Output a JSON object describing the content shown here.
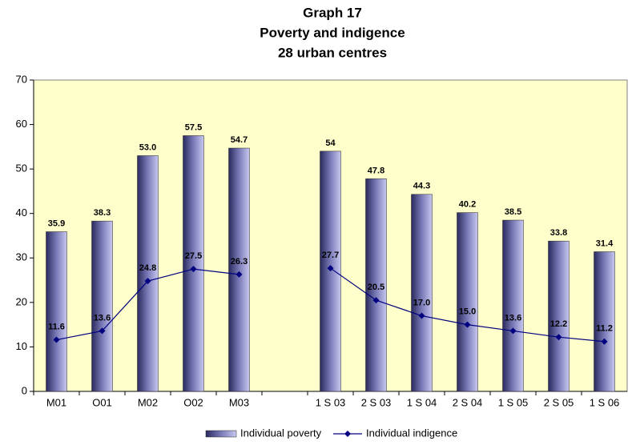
{
  "chart_data": {
    "type": "bar_line",
    "title": [
      "Graph 17",
      "Poverty and indigence",
      "28 urban centres"
    ],
    "categories": [
      "M01",
      "O01",
      "M02",
      "O02",
      "M03",
      null,
      "1 S 03",
      "2 S 03",
      "1 S 04",
      "2 S 04",
      "1 S 05",
      "2 S 05",
      "1 S 06"
    ],
    "series": [
      {
        "name": "Individual poverty",
        "type": "bar",
        "color": "#333366",
        "values": [
          35.9,
          38.3,
          53.0,
          57.5,
          54.7,
          null,
          54,
          47.8,
          44.3,
          40.2,
          38.5,
          33.8,
          31.4
        ],
        "value_labels": [
          "35.9",
          "38.3",
          "53.0",
          "57.5",
          "54.7",
          null,
          "54",
          "47.8",
          "44.3",
          "40.2",
          "38.5",
          "33.8",
          "31.4"
        ]
      },
      {
        "name": "Individual indigence",
        "type": "line",
        "color": "#000080",
        "values": [
          11.6,
          13.6,
          24.8,
          27.5,
          26.3,
          null,
          27.7,
          20.5,
          17.0,
          15.0,
          13.6,
          12.2,
          11.2
        ],
        "value_labels": [
          "11.6",
          "13.6",
          "24.8",
          "27.5",
          "26.3",
          null,
          "27.7",
          "20.5",
          "17.0",
          "15.0",
          "13.6",
          "12.2",
          "11.2"
        ]
      }
    ],
    "ylim": [
      0,
      70
    ],
    "yticks": [
      0,
      10,
      20,
      30,
      40,
      50,
      60,
      70
    ],
    "grid": false,
    "legend": "bottom",
    "plot_background": "#ffffcc"
  }
}
